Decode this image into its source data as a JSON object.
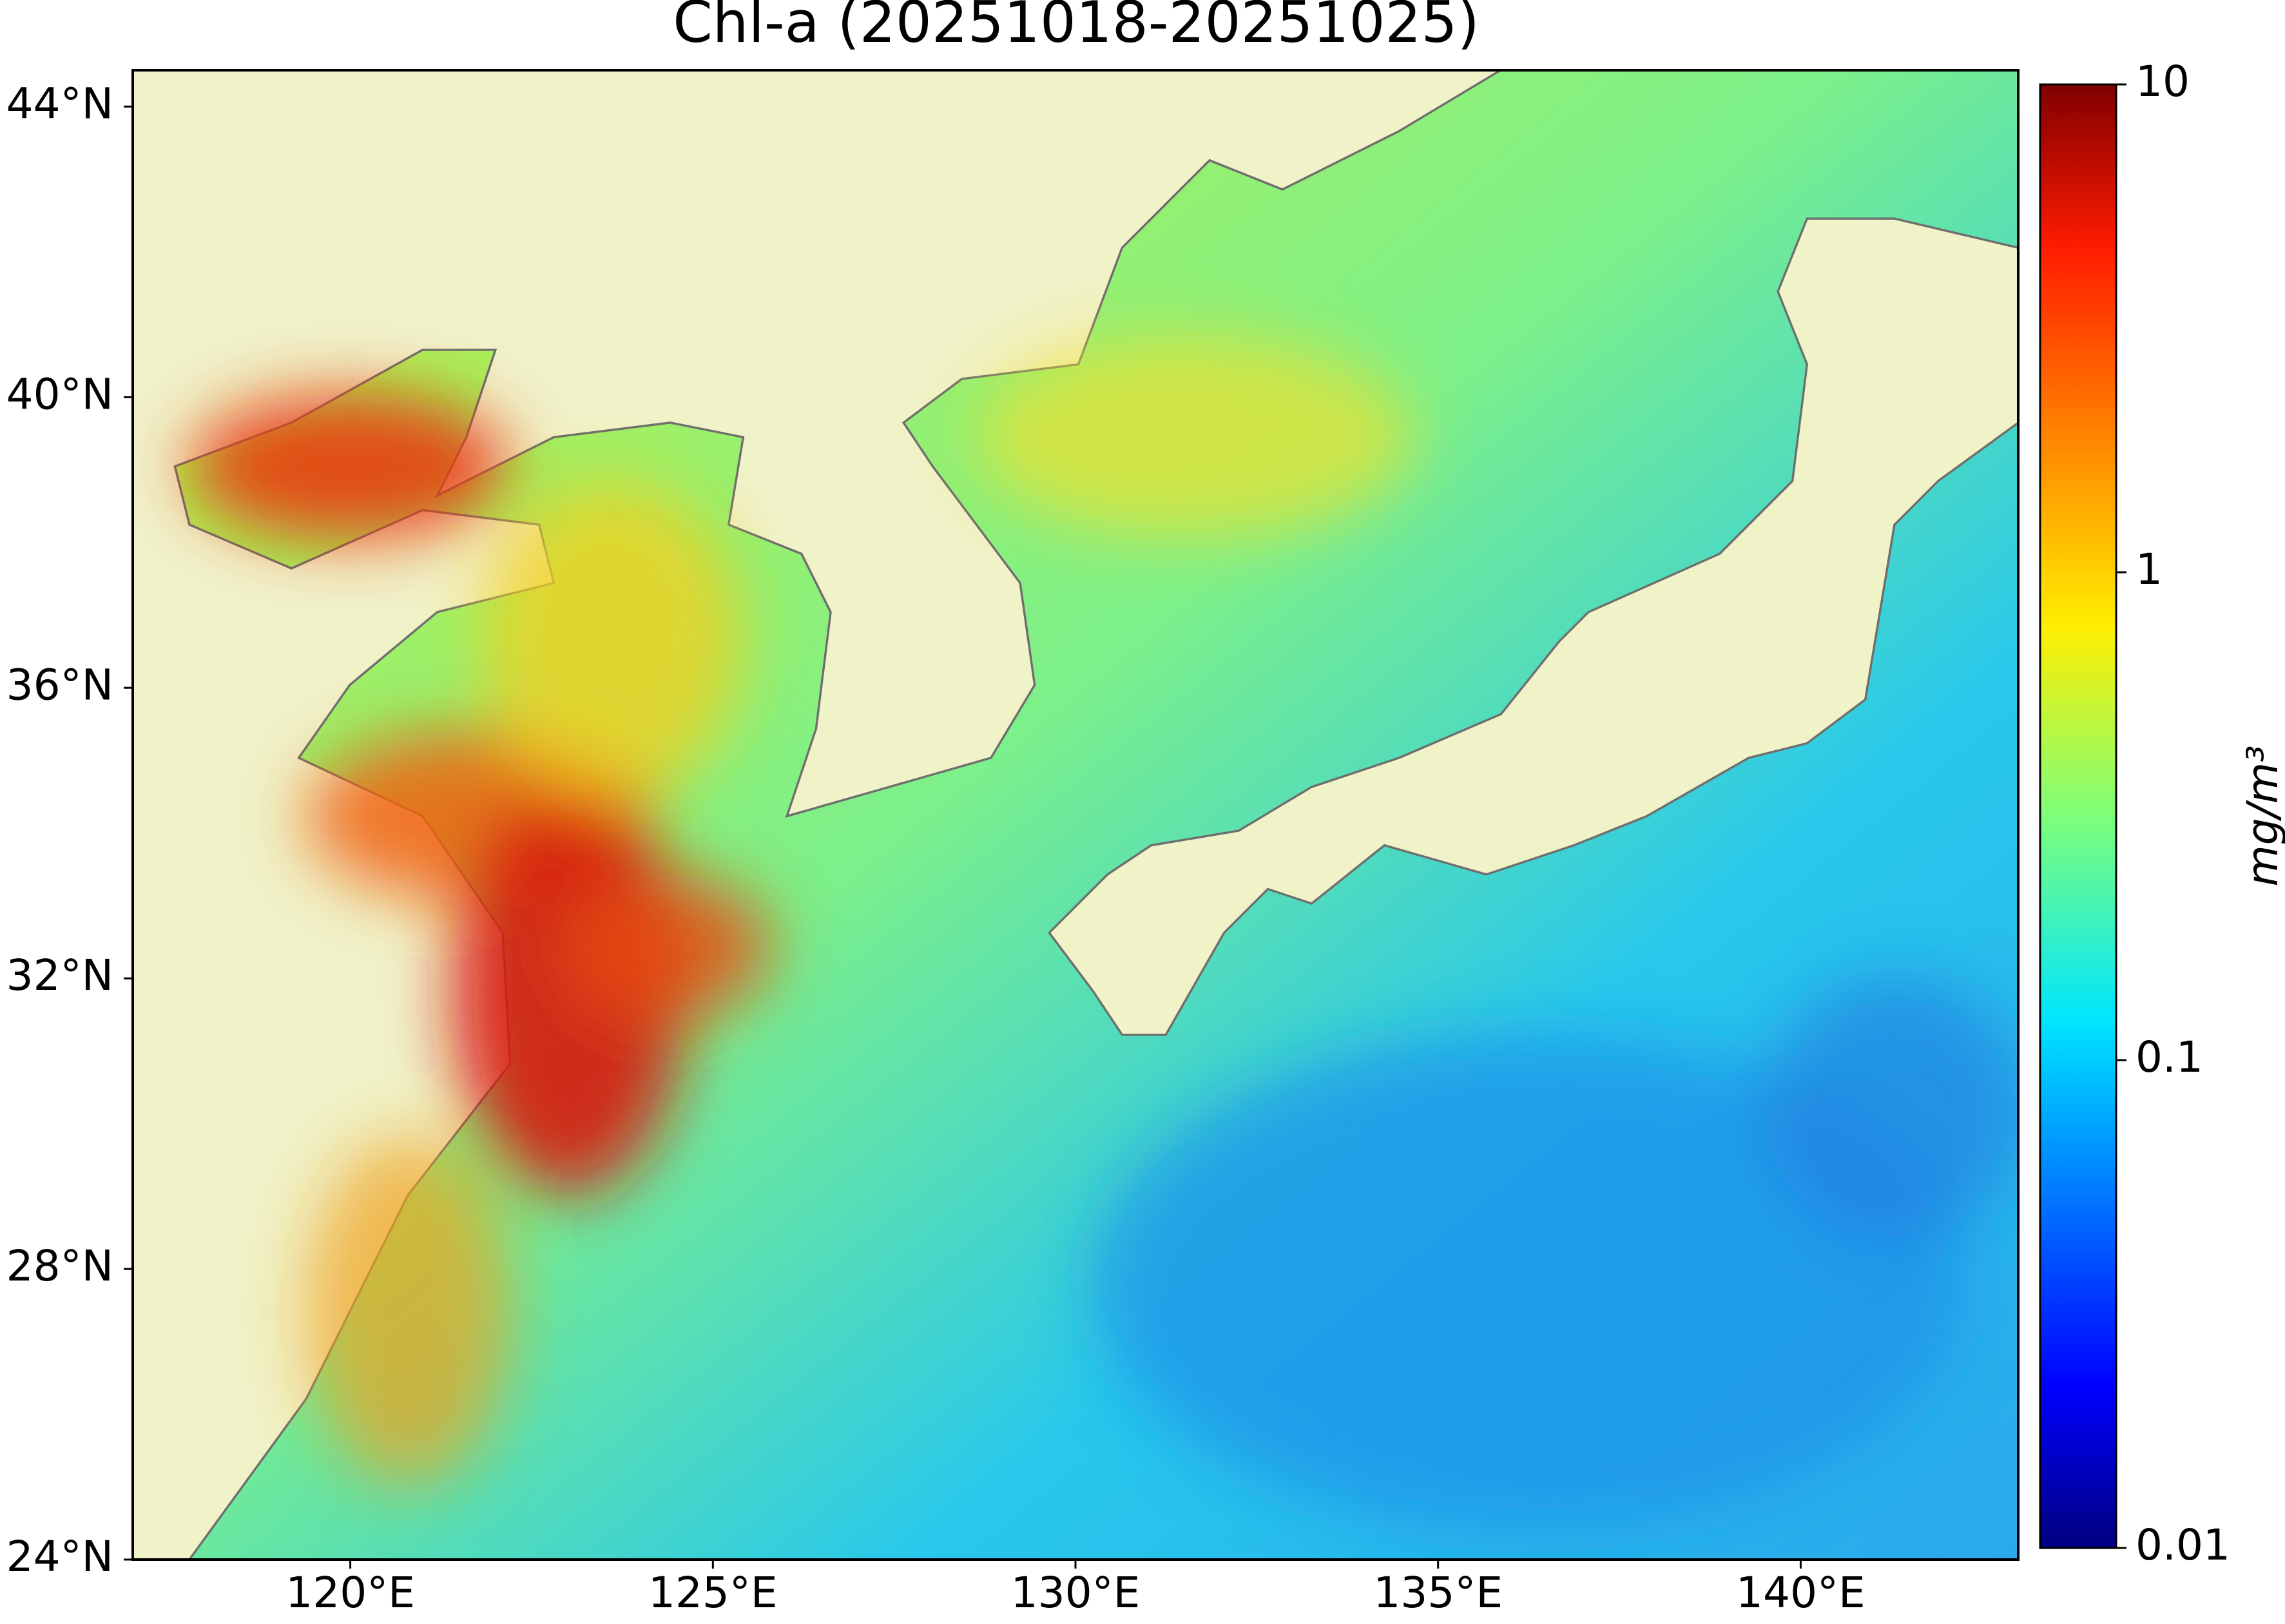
{
  "map": {
    "title": "Chl-a (20251018-20251025)",
    "lonlim": [
      117,
      143
    ],
    "latlim": [
      24,
      44.5
    ],
    "lon_ticks": [
      {
        "value": 120,
        "label": "120°E"
      },
      {
        "value": 125,
        "label": "125°E"
      },
      {
        "value": 130,
        "label": "130°E"
      },
      {
        "value": 135,
        "label": "135°E"
      },
      {
        "value": 140,
        "label": "140°E"
      }
    ],
    "lat_ticks": [
      {
        "value": 24,
        "label": "24°N"
      },
      {
        "value": 28,
        "label": "28°N"
      },
      {
        "value": 32,
        "label": "32°N"
      },
      {
        "value": 36,
        "label": "36°N"
      },
      {
        "value": 40,
        "label": "40°N"
      },
      {
        "value": 44,
        "label": "44°N"
      }
    ],
    "colorbar": {
      "lim": [
        0.01,
        10
      ],
      "log": true,
      "ticks": [
        0.01,
        0.1,
        1,
        10
      ],
      "label": "mg/m³"
    }
  }
}
